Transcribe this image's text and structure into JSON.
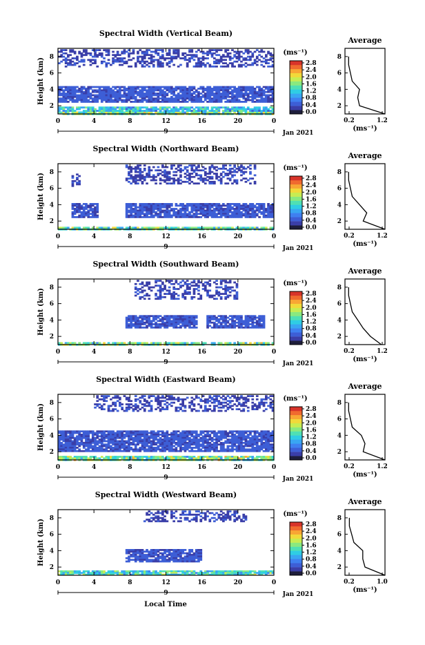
{
  "colors": {
    "scale": [
      "#1e1e3c",
      "#3a3ea8",
      "#3d5ed6",
      "#3f80f0",
      "#39a6f2",
      "#2fcde4",
      "#4fe0b4",
      "#8ae97f",
      "#c7ec52",
      "#f1d93a",
      "#f8a634",
      "#f06a2f",
      "#d8342a"
    ]
  },
  "x_label": "Local Time",
  "panels": [
    {
      "title": "Spectral Width (Vertical Beam)",
      "ylabel": "Height (km)",
      "yticks": [
        "2",
        "4",
        "6",
        "8"
      ],
      "xticks": [
        "0",
        "4",
        "8",
        "12",
        "16",
        "20",
        "0"
      ],
      "day_label": "9",
      "date_label": "Jan 2021",
      "cbar_unit": "(ms⁻¹)",
      "cbar_ticks": [
        "0.0",
        "0.4",
        "0.8",
        "1.2",
        "1.6",
        "2.0",
        "2.4",
        "2.8"
      ],
      "avg_title": "Average",
      "avg_yticks": [
        "2",
        "4",
        "6",
        "8"
      ],
      "avg_xticks": [
        "0.2",
        "1.2"
      ],
      "avg_xlabel": "(ms⁻¹)"
    },
    {
      "title": "Spectral Width (Northward Beam)",
      "ylabel": "Height (km)",
      "yticks": [
        "2",
        "4",
        "6",
        "8"
      ],
      "xticks": [
        "0",
        "4",
        "8",
        "12",
        "16",
        "20",
        "0"
      ],
      "day_label": "9",
      "date_label": "Jan 2021",
      "cbar_unit": "(ms⁻¹)",
      "cbar_ticks": [
        "0.0",
        "0.4",
        "0.8",
        "1.2",
        "1.6",
        "2.0",
        "2.4",
        "2.8"
      ],
      "avg_title": "Average",
      "avg_yticks": [
        "2",
        "4",
        "6",
        "8"
      ],
      "avg_xticks": [
        "0.2",
        "1.2"
      ],
      "avg_xlabel": "(ms⁻¹)"
    },
    {
      "title": "Spectral Width (Southward Beam)",
      "ylabel": "Height (km)",
      "yticks": [
        "2",
        "4",
        "6",
        "8"
      ],
      "xticks": [
        "0",
        "4",
        "8",
        "12",
        "16",
        "20",
        "0"
      ],
      "day_label": "9",
      "date_label": "Jan 2021",
      "cbar_unit": "(ms⁻¹)",
      "cbar_ticks": [
        "0.0",
        "0.4",
        "0.8",
        "1.2",
        "1.6",
        "2.0",
        "2.4",
        "2.8"
      ],
      "avg_title": "Average",
      "avg_yticks": [
        "2",
        "4",
        "6",
        "8"
      ],
      "avg_xticks": [
        "0.2",
        "1.2"
      ],
      "avg_xlabel": "(ms⁻¹)"
    },
    {
      "title": "Spectral Width (Eastward Beam)",
      "ylabel": "Height (km)",
      "yticks": [
        "2",
        "4",
        "6",
        "8"
      ],
      "xticks": [
        "0",
        "4",
        "8",
        "12",
        "16",
        "20",
        "0"
      ],
      "day_label": "9",
      "date_label": "Jan 2021",
      "cbar_unit": "(ms⁻¹)",
      "cbar_ticks": [
        "0.0",
        "0.4",
        "0.8",
        "1.2",
        "1.6",
        "2.0",
        "2.4",
        "2.8"
      ],
      "avg_title": "Average",
      "avg_yticks": [
        "2",
        "4",
        "6",
        "8"
      ],
      "avg_xticks": [
        "0.2",
        "1.2"
      ],
      "avg_xlabel": "(ms⁻¹)"
    },
    {
      "title": "Spectral Width (Westward Beam)",
      "ylabel": "Height (km)",
      "yticks": [
        "2",
        "4",
        "6",
        "8"
      ],
      "xticks": [
        "0",
        "4",
        "8",
        "12",
        "16",
        "20",
        "0"
      ],
      "day_label": "9",
      "date_label": "Jan 2021",
      "cbar_unit": "(ms⁻¹)",
      "cbar_ticks": [
        "0.0",
        "0.4",
        "0.8",
        "1.2",
        "1.6",
        "2.0",
        "2.4",
        "2.8"
      ],
      "avg_title": "Average",
      "avg_yticks": [
        "2",
        "4",
        "6",
        "8"
      ],
      "avg_xticks": [
        "0.2",
        "1.0"
      ],
      "avg_xlabel": "(ms⁻¹)"
    }
  ],
  "chart_data": [
    {
      "type": "heatmap",
      "title": "Spectral Width (Vertical Beam)",
      "ylabel": "Height (km)",
      "units": "ms-1",
      "xlim": [
        0,
        24
      ],
      "ylim": [
        1,
        9
      ],
      "clim": [
        0.0,
        2.8
      ],
      "regions": [
        {
          "x": [
            0,
            24
          ],
          "y": [
            1.0,
            1.3
          ],
          "value": 1.0
        },
        {
          "x": [
            0,
            24
          ],
          "y": [
            1.3,
            1.9
          ],
          "value": 0.6
        },
        {
          "x": [
            0,
            24
          ],
          "y": [
            2.4,
            3.2
          ],
          "value": 0.3
        },
        {
          "x": [
            0,
            24
          ],
          "y": [
            3.2,
            4.4
          ],
          "value": 0.3
        },
        {
          "x": [
            0,
            24
          ],
          "y": [
            6.8,
            8.9
          ],
          "value": 0.2
        }
      ],
      "average": {
        "heights": [
          1,
          2,
          3,
          4,
          5,
          6,
          7,
          8
        ],
        "values": [
          1.2,
          0.5,
          0.45,
          0.5,
          0.3,
          0.25,
          0.2,
          0.2
        ]
      }
    },
    {
      "type": "heatmap",
      "title": "Spectral Width (Northward Beam)",
      "ylabel": "Height (km)",
      "units": "ms-1",
      "xlim": [
        0,
        24
      ],
      "ylim": [
        1,
        9
      ],
      "clim": [
        0.0,
        2.8
      ],
      "regions": [
        {
          "x": [
            0,
            24
          ],
          "y": [
            1.0,
            1.3
          ],
          "value": 0.9
        },
        {
          "x": [
            1.5,
            4.5
          ],
          "y": [
            2.4,
            4.2
          ],
          "value": 0.3
        },
        {
          "x": [
            7.5,
            24
          ],
          "y": [
            2.4,
            4.2
          ],
          "value": 0.3
        },
        {
          "x": [
            7.5,
            22
          ],
          "y": [
            6.5,
            8.9
          ],
          "value": 0.2
        },
        {
          "x": [
            1.5,
            2.3
          ],
          "y": [
            6.2,
            7.8
          ],
          "value": 0.2
        }
      ],
      "average": {
        "heights": [
          1,
          2,
          3,
          4,
          5,
          6,
          7,
          8
        ],
        "values": [
          1.2,
          0.6,
          0.7,
          0.5,
          0.3,
          0.25,
          0.2,
          0.2
        ]
      }
    },
    {
      "type": "heatmap",
      "title": "Spectral Width (Southward Beam)",
      "ylabel": "Height (km)",
      "units": "ms-1",
      "xlim": [
        0,
        24
      ],
      "ylim": [
        1,
        9
      ],
      "clim": [
        0.0,
        2.8
      ],
      "regions": [
        {
          "x": [
            0,
            24
          ],
          "y": [
            1.0,
            1.3
          ],
          "value": 1.0
        },
        {
          "x": [
            7.5,
            15.5
          ],
          "y": [
            3.0,
            4.6
          ],
          "value": 0.3
        },
        {
          "x": [
            16.5,
            23
          ],
          "y": [
            3.0,
            4.6
          ],
          "value": 0.3
        },
        {
          "x": [
            8.5,
            20
          ],
          "y": [
            6.5,
            8.9
          ],
          "value": 0.2
        }
      ],
      "average": {
        "heights": [
          1,
          2,
          3,
          4,
          5,
          6,
          7,
          8
        ],
        "values": [
          1.1,
          0.8,
          0.6,
          0.45,
          0.3,
          0.25,
          0.2,
          0.2
        ]
      }
    },
    {
      "type": "heatmap",
      "title": "Spectral Width (Eastward Beam)",
      "ylabel": "Height (km)",
      "units": "ms-1",
      "xlim": [
        0,
        24
      ],
      "ylim": [
        1,
        9
      ],
      "clim": [
        0.0,
        2.8
      ],
      "regions": [
        {
          "x": [
            0,
            24
          ],
          "y": [
            1.0,
            1.5
          ],
          "value": 1.0
        },
        {
          "x": [
            0,
            24
          ],
          "y": [
            2.0,
            4.6
          ],
          "value": 0.3
        },
        {
          "x": [
            4,
            24
          ],
          "y": [
            7.0,
            8.9
          ],
          "value": 0.2
        }
      ],
      "average": {
        "heights": [
          1,
          2,
          3,
          4,
          5,
          6,
          7,
          8
        ],
        "values": [
          1.2,
          0.6,
          0.65,
          0.55,
          0.3,
          0.25,
          0.2,
          0.2
        ]
      }
    },
    {
      "type": "heatmap",
      "title": "Spectral Width (Westward Beam)",
      "ylabel": "Height (km)",
      "units": "ms-1",
      "xlim": [
        0,
        24
      ],
      "ylim": [
        1,
        9
      ],
      "clim": [
        0.0,
        2.8
      ],
      "regions": [
        {
          "x": [
            0,
            24
          ],
          "y": [
            1.0,
            1.6
          ],
          "value": 0.8
        },
        {
          "x": [
            7.5,
            16
          ],
          "y": [
            2.6,
            4.2
          ],
          "value": 0.3
        },
        {
          "x": [
            9.5,
            21
          ],
          "y": [
            7.5,
            8.9
          ],
          "value": 0.2
        }
      ],
      "average": {
        "heights": [
          1,
          2,
          3,
          4,
          5,
          6,
          7,
          8
        ],
        "values": [
          1.0,
          0.55,
          0.5,
          0.5,
          0.3,
          0.25,
          0.2,
          0.2
        ]
      }
    }
  ]
}
